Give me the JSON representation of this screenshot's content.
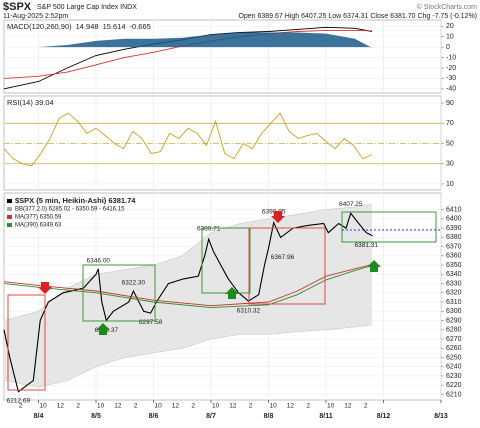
{
  "header": {
    "symbol": "$SPX",
    "name": "S&P 500 Large Cap Index INDX",
    "date": "11-Aug-2025 2:52pm",
    "quote": "Open 6389.67  High 6407.25  Low 6374.31  Close 6381.70  Chg -7.75 (-0.12%)",
    "credit": "© StockCharts.com"
  },
  "chart_data": [
    {
      "type": "line",
      "title": "MACD(120,260,90)",
      "ylim": [
        -44,
        26
      ],
      "yticks": [
        20,
        10,
        0,
        -10,
        -20,
        -30,
        -40
      ],
      "series": [
        {
          "name": "14.948",
          "color": "#000000",
          "x": [
            -0.6,
            0,
            0.5,
            1,
            1.5,
            2,
            2.5,
            3,
            3.5,
            4,
            4.5,
            5,
            5.5,
            5.8
          ],
          "values": [
            -40,
            -33,
            -20,
            -8,
            -2,
            3,
            7,
            12,
            14,
            15,
            17,
            19,
            18,
            15
          ]
        },
        {
          "name": "15.614",
          "color": "#e03030",
          "x": [
            -0.6,
            0,
            0.5,
            1,
            1.5,
            2,
            2.5,
            3,
            3.5,
            4,
            4.5,
            5,
            5.5,
            5.8
          ],
          "values": [
            -30,
            -28,
            -24,
            -17,
            -10,
            -5,
            1,
            6,
            10,
            13,
            15,
            16,
            16,
            15.6
          ]
        },
        {
          "name": "-0.665",
          "color": "#1a5a8a",
          "style": "area",
          "x": [
            -0.6,
            0,
            0.5,
            1,
            1.5,
            2,
            2.5,
            3,
            3.5,
            4,
            4.5,
            5,
            5.5,
            5.8
          ],
          "values": [
            0,
            0,
            2,
            6,
            8,
            8,
            9,
            12,
            14,
            14,
            14,
            13,
            8,
            -0.665
          ]
        }
      ]
    },
    {
      "type": "line",
      "title": "RSI(14) 39.04",
      "ylim": [
        4,
        97
      ],
      "yticks": [
        90,
        70,
        50,
        30,
        10
      ],
      "ref_lines": [
        70,
        30
      ],
      "mid_line": 50,
      "ref_color": "#d4b040",
      "series": [
        {
          "color": "#c9a227",
          "x": [
            -0.6,
            -0.44,
            -0.28,
            -0.12,
            0.04,
            0.2,
            0.36,
            0.52,
            0.68,
            0.84,
            1,
            1.16,
            1.32,
            1.48,
            1.64,
            1.8,
            1.96,
            2.12,
            2.28,
            2.44,
            2.6,
            2.76,
            2.92,
            3.08,
            3.24,
            3.4,
            3.56,
            3.72,
            3.88,
            4.04,
            4.2,
            4.36,
            4.52,
            4.68,
            4.84,
            5,
            5.16,
            5.32,
            5.48,
            5.64,
            5.8
          ],
          "values": [
            45,
            35,
            30,
            28,
            40,
            55,
            75,
            80,
            72,
            60,
            65,
            58,
            50,
            45,
            62,
            55,
            40,
            42,
            60,
            55,
            65,
            60,
            48,
            72,
            40,
            35,
            50,
            45,
            60,
            70,
            80,
            62,
            55,
            58,
            60,
            52,
            45,
            55,
            48,
            35,
            39.04
          ]
        }
      ]
    },
    {
      "type": "price",
      "title": "$SPX (5 min, Heikin-Ashi) 6381.74",
      "ylim": [
        6204,
        6428
      ],
      "yticks": [
        6210,
        6220,
        6230,
        6240,
        6250,
        6260,
        6270,
        6280,
        6290,
        6300,
        6310,
        6320,
        6330,
        6340,
        6350,
        6360,
        6370,
        6380,
        6390,
        6400,
        6410
      ],
      "xlim": [
        -0.6,
        7
      ],
      "xticks": [
        {
          "value": 0,
          "label": "8/4"
        },
        {
          "value": 1,
          "label": "8/5"
        },
        {
          "value": 2,
          "label": "8/6"
        },
        {
          "value": 3,
          "label": "8/7"
        },
        {
          "value": 4,
          "label": "8/8"
        },
        {
          "value": 5,
          "label": "8/11"
        },
        {
          "value": 6,
          "label": "8/12"
        },
        {
          "value": 7,
          "label": "8/13"
        }
      ],
      "xminor": [
        {
          "value": -0.31,
          "label": "2"
        },
        {
          "value": 0.08,
          "label": "10"
        },
        {
          "value": 0.38,
          "label": "12"
        },
        {
          "value": 0.69,
          "label": "2"
        },
        {
          "value": 1.08,
          "label": "10"
        },
        {
          "value": 1.38,
          "label": "12"
        },
        {
          "value": 1.69,
          "label": "2"
        },
        {
          "value": 2.08,
          "label": "10"
        },
        {
          "value": 2.38,
          "label": "12"
        },
        {
          "value": 2.69,
          "label": "2"
        },
        {
          "value": 3.08,
          "label": "10"
        },
        {
          "value": 3.38,
          "label": "12"
        },
        {
          "value": 3.69,
          "label": "2"
        },
        {
          "value": 4.08,
          "label": "10"
        },
        {
          "value": 4.38,
          "label": "12"
        },
        {
          "value": 4.69,
          "label": "2"
        },
        {
          "value": 5.08,
          "label": "10"
        },
        {
          "value": 5.38,
          "label": "12"
        },
        {
          "value": 5.69,
          "label": "2"
        }
      ],
      "band": {
        "name": "BB(377,2.0) 6285.02 - 6350.59 - 6416.15",
        "color": "#e6e6e6",
        "x": [
          -0.6,
          0,
          0.5,
          1,
          1.5,
          2,
          2.5,
          3,
          3.5,
          4,
          4.5,
          5,
          5.5,
          5.8
        ],
        "upper": [
          6290,
          6300,
          6325,
          6340,
          6345,
          6350,
          6360,
          6385,
          6395,
          6400,
          6405,
          6410,
          6413,
          6416.15
        ],
        "lower": [
          6225,
          6218,
          6225,
          6240,
          6250,
          6255,
          6260,
          6270,
          6275,
          6275,
          6278,
          6280,
          6283,
          6285.02
        ]
      },
      "series": [
        {
          "name": "$SPX (5 min, Heikin-Ashi) 6381.74",
          "color": "#000000",
          "x": [
            -0.6,
            -0.5,
            -0.35,
            -0.2,
            -0.09,
            0.03,
            0.17,
            0.43,
            0.78,
            1.0,
            1.04,
            1.1,
            1.18,
            1.3,
            1.57,
            1.65,
            1.83,
            1.95,
            2.05,
            2.26,
            2.52,
            2.78,
            2.89,
            2.96,
            3.04,
            3.17,
            3.3,
            3.48,
            3.65,
            3.83,
            3.93,
            4.0,
            4.09,
            4.21,
            4.43,
            4.7,
            4.96,
            5.04,
            5.22,
            5.35,
            5.43,
            5.57,
            5.7,
            5.81
          ],
          "values": [
            6280,
            6250,
            6213,
            6220,
            6225,
            6290,
            6310,
            6320,
            6325,
            6340,
            6346,
            6310,
            6290,
            6300,
            6310,
            6322,
            6300,
            6298,
            6310,
            6330,
            6335,
            6338,
            6360,
            6378,
            6365,
            6350,
            6335,
            6320,
            6311,
            6318,
            6350,
            6368,
            6396,
            6380,
            6390,
            6393,
            6395,
            6385,
            6395,
            6390,
            6406,
            6395,
            6385,
            6381.74
          ]
        },
        {
          "name": "MA(377) 6350.59",
          "color": "#c0392b",
          "x": [
            -0.6,
            0,
            1,
            2,
            3,
            4,
            4.5,
            5,
            5.5,
            5.8
          ],
          "values": [
            6332,
            6328,
            6322,
            6312,
            6306,
            6310,
            6322,
            6338,
            6346,
            6350.59
          ]
        },
        {
          "name": "MA(390) 6349.63",
          "color": "#2e8b2e",
          "x": [
            -0.6,
            0,
            1,
            2,
            3,
            4,
            4.5,
            5,
            5.5,
            5.8
          ],
          "values": [
            6330,
            6326,
            6320,
            6310,
            6304,
            6307,
            6318,
            6334,
            6344,
            6349.63
          ]
        }
      ],
      "annotations": [
        {
          "value": 6212.69,
          "label": "6212.69",
          "x": -0.35
        },
        {
          "value": 6346.0,
          "label": "6346.00",
          "x": 1.04
        },
        {
          "value": 6289.37,
          "label": "6289.37",
          "x": 1.18
        },
        {
          "value": 6322.3,
          "label": "6322.30",
          "x": 1.65
        },
        {
          "value": 6297.58,
          "label": "6297.58",
          "x": 1.95
        },
        {
          "value": 6380.71,
          "label": "6380.71",
          "x": 2.96
        },
        {
          "value": 6398.95,
          "label": "6398.95",
          "x": 4.09
        },
        {
          "value": 6367.96,
          "label": "6367.96",
          "x": 4.0
        },
        {
          "value": 6310.32,
          "label": "6310.32",
          "x": 3.65
        },
        {
          "value": 6407.25,
          "label": "6407.25",
          "x": 5.43
        },
        {
          "value": 6381.31,
          "label": "6381.31",
          "x": 5.7
        }
      ]
    }
  ]
}
